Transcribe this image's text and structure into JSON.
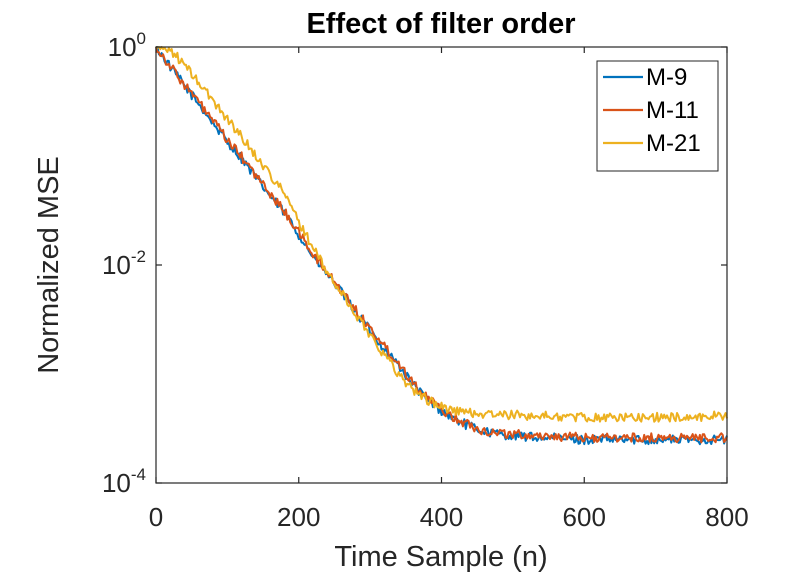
{
  "chart_data": {
    "type": "line",
    "title": "Effect of filter order",
    "xlabel": "Time Sample (n)",
    "ylabel": "Normalized MSE",
    "xlim": [
      0,
      800
    ],
    "ylim": [
      0.0001,
      1
    ],
    "yscale": "log",
    "xticks": [
      0,
      200,
      400,
      600,
      800
    ],
    "xtick_labels": [
      "0",
      "200",
      "400",
      "600",
      "800"
    ],
    "yticks": [
      1,
      0.01,
      0.0001
    ],
    "ytick_labels": [
      {
        "base": "10",
        "exp": "0"
      },
      {
        "base": "10",
        "exp": "-2"
      },
      {
        "base": "10",
        "exp": "-4"
      }
    ],
    "legend_position": "top-right",
    "grid": false,
    "series": [
      {
        "name": "M-9",
        "color": "#0072BD",
        "x": [
          0,
          20,
          40,
          60,
          80,
          100,
          120,
          140,
          160,
          180,
          200,
          220,
          240,
          260,
          280,
          300,
          320,
          340,
          360,
          380,
          400,
          420,
          440,
          460,
          480,
          500,
          550,
          600,
          650,
          700,
          750,
          800
        ],
        "y": [
          1.0,
          0.66,
          0.44,
          0.3,
          0.2,
          0.135,
          0.095,
          0.063,
          0.043,
          0.03,
          0.019,
          0.012,
          0.0082,
          0.0056,
          0.0037,
          0.0025,
          0.0017,
          0.0012,
          0.0008,
          0.00058,
          0.00046,
          0.00038,
          0.00033,
          0.0003,
          0.00028,
          0.00027,
          0.00026,
          0.00025,
          0.00025,
          0.00025,
          0.00025,
          0.00025
        ]
      },
      {
        "name": "M-11",
        "color": "#D95319",
        "x": [
          0,
          20,
          40,
          60,
          80,
          100,
          120,
          140,
          160,
          180,
          200,
          220,
          240,
          260,
          280,
          300,
          320,
          340,
          360,
          380,
          400,
          420,
          440,
          460,
          480,
          500,
          550,
          600,
          650,
          700,
          750,
          800
        ],
        "y": [
          1.0,
          0.67,
          0.45,
          0.31,
          0.21,
          0.14,
          0.098,
          0.066,
          0.045,
          0.031,
          0.02,
          0.0125,
          0.0085,
          0.0058,
          0.0039,
          0.0026,
          0.0018,
          0.00125,
          0.00085,
          0.0006,
          0.00047,
          0.00039,
          0.00034,
          0.0003,
          0.00029,
          0.00028,
          0.00027,
          0.00026,
          0.00026,
          0.00026,
          0.00026,
          0.00026
        ]
      },
      {
        "name": "M-21",
        "color": "#EDB120",
        "x": [
          0,
          20,
          40,
          60,
          80,
          100,
          120,
          140,
          160,
          180,
          200,
          220,
          240,
          260,
          280,
          300,
          320,
          340,
          360,
          380,
          400,
          420,
          440,
          460,
          480,
          500,
          550,
          600,
          650,
          700,
          750,
          800
        ],
        "y": [
          1.0,
          0.95,
          0.68,
          0.47,
          0.32,
          0.22,
          0.15,
          0.1,
          0.068,
          0.045,
          0.025,
          0.0145,
          0.0085,
          0.0055,
          0.0035,
          0.0023,
          0.0015,
          0.001,
          0.00072,
          0.00058,
          0.0005,
          0.00046,
          0.00044,
          0.00043,
          0.00042,
          0.00042,
          0.00041,
          0.0004,
          0.0004,
          0.0004,
          0.0004,
          0.00042
        ]
      }
    ]
  }
}
